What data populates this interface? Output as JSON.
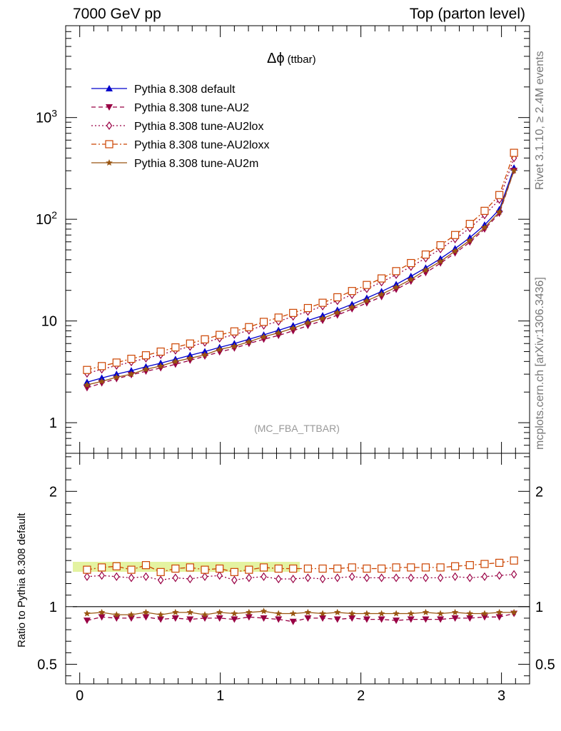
{
  "header": {
    "left": "7000 GeV pp",
    "right": "Top (parton level)"
  },
  "side_labels": {
    "rivet": "Rivet 3.1.10, ≥ 2.4M events",
    "mcplots": "mcplots.cern.ch [arXiv:1306.3436]"
  },
  "chart_data": [
    {
      "type": "scatter",
      "title": "Δϕ",
      "title_suffix": "(ttbar)",
      "annotation": "(MC_FBA_TTBAR)",
      "yscale": "log",
      "ylim": [
        0.5,
        8000
      ],
      "xlim": [
        -0.1,
        3.2
      ],
      "ytick_labels": [
        "1",
        "10",
        "10^2",
        "10^3"
      ],
      "legend_position": "top-left",
      "x": [
        0.052,
        0.157,
        0.262,
        0.367,
        0.471,
        0.576,
        0.681,
        0.785,
        0.89,
        0.995,
        1.1,
        1.204,
        1.309,
        1.414,
        1.518,
        1.623,
        1.728,
        1.833,
        1.937,
        2.042,
        2.147,
        2.251,
        2.356,
        2.461,
        2.566,
        2.67,
        2.775,
        2.88,
        2.985,
        3.089
      ],
      "series": [
        {
          "name": "Pythia 8.308 default",
          "color": "#0000cc",
          "marker": "triangle-up",
          "line": "solid",
          "values": [
            2.5,
            2.75,
            3.0,
            3.25,
            3.55,
            3.85,
            4.2,
            4.6,
            5.0,
            5.5,
            6.0,
            6.6,
            7.3,
            8.1,
            9.0,
            10.1,
            11.3,
            12.8,
            14.6,
            16.8,
            19.5,
            22.9,
            27.5,
            33.3,
            41.0,
            51.5,
            66.0,
            88.0,
            125.0,
            320.0
          ]
        },
        {
          "name": "Pythia 8.308 tune-AU2",
          "color": "#990044",
          "marker": "triangle-down",
          "line": "dashed",
          "values": [
            2.2,
            2.45,
            2.7,
            2.95,
            3.2,
            3.45,
            3.75,
            4.1,
            4.5,
            4.95,
            5.4,
            6.0,
            6.6,
            7.2,
            8.0,
            9.0,
            10.1,
            11.4,
            13.1,
            15.0,
            17.3,
            20.4,
            24.5,
            29.8,
            37.0,
            46.5,
            59.5,
            80.0,
            114.0,
            300.0
          ]
        },
        {
          "name": "Pythia 8.308 tune-AU2lox",
          "color": "#990044",
          "marker": "diamond-open",
          "line": "dotted",
          "values": [
            3.05,
            3.35,
            3.65,
            3.95,
            4.3,
            4.65,
            5.15,
            5.6,
            6.15,
            6.75,
            7.35,
            8.1,
            9.05,
            9.9,
            11.1,
            12.4,
            14.0,
            15.8,
            18.1,
            20.7,
            24.1,
            28.5,
            34.2,
            41.4,
            51.0,
            64.0,
            82.0,
            110.0,
            156.0,
            400.0
          ]
        },
        {
          "name": "Pythia 8.308 tune-AU2loxx",
          "color": "#cc4400",
          "marker": "square-open",
          "line": "dashdot",
          "values": [
            3.3,
            3.6,
            3.9,
            4.25,
            4.6,
            5.0,
            5.5,
            6.0,
            6.6,
            7.3,
            7.9,
            8.7,
            9.8,
            10.8,
            12.0,
            13.4,
            15.1,
            17.1,
            19.7,
            22.6,
            26.2,
            30.9,
            37.1,
            45.0,
            55.5,
            70.0,
            90.0,
            121.0,
            173.0,
            450.0
          ]
        },
        {
          "name": "Pythia 8.308 tune-AU2m",
          "color": "#995511",
          "marker": "star",
          "line": "solid",
          "values": [
            2.35,
            2.55,
            2.8,
            3.0,
            3.35,
            3.6,
            4.0,
            4.3,
            4.65,
            5.25,
            5.65,
            6.25,
            7.0,
            7.65,
            8.5,
            9.6,
            10.6,
            12.1,
            13.7,
            15.8,
            18.3,
            21.5,
            25.6,
            31.7,
            38.5,
            48.7,
            62.0,
            83.0,
            118.0,
            300.0
          ]
        }
      ]
    },
    {
      "type": "scatter",
      "ylabel": "Ratio to Pythia 8.308 default",
      "ylim": [
        0.33,
        2.33
      ],
      "xlim": [
        -0.1,
        3.2
      ],
      "xtick_labels": [
        "0",
        "1",
        "2",
        "3"
      ],
      "ytick_labels": [
        "0.5",
        "1",
        "2"
      ],
      "x": [
        0.052,
        0.157,
        0.262,
        0.367,
        0.471,
        0.576,
        0.681,
        0.785,
        0.89,
        0.995,
        1.1,
        1.204,
        1.309,
        1.414,
        1.518,
        1.623,
        1.728,
        1.833,
        1.937,
        2.042,
        2.147,
        2.251,
        2.356,
        2.461,
        2.566,
        2.67,
        2.775,
        2.88,
        2.985,
        3.089
      ],
      "series": [
        {
          "name": "Pythia 8.308 default",
          "color": "#000000",
          "values": [
            1,
            1,
            1,
            1,
            1,
            1,
            1,
            1,
            1,
            1,
            1,
            1,
            1,
            1,
            1,
            1,
            1,
            1,
            1,
            1,
            1,
            1,
            1,
            1,
            1,
            1,
            1,
            1,
            1,
            1
          ]
        },
        {
          "name": "Pythia 8.308 tune-AU2",
          "color": "#990044",
          "marker": "triangle-down",
          "line": "dashed",
          "values": [
            0.88,
            0.91,
            0.9,
            0.9,
            0.91,
            0.89,
            0.9,
            0.89,
            0.9,
            0.9,
            0.89,
            0.91,
            0.9,
            0.89,
            0.87,
            0.9,
            0.9,
            0.89,
            0.9,
            0.89,
            0.89,
            0.88,
            0.89,
            0.89,
            0.89,
            0.9,
            0.9,
            0.91,
            0.91,
            0.94
          ]
        },
        {
          "name": "Pythia 8.308 tune-AU2lox",
          "color": "#990044",
          "marker": "diamond-open",
          "line": "dotted",
          "values": [
            1.26,
            1.27,
            1.26,
            1.25,
            1.26,
            1.23,
            1.25,
            1.24,
            1.26,
            1.27,
            1.23,
            1.25,
            1.26,
            1.24,
            1.24,
            1.25,
            1.24,
            1.25,
            1.26,
            1.25,
            1.25,
            1.25,
            1.25,
            1.25,
            1.25,
            1.26,
            1.25,
            1.26,
            1.27,
            1.28
          ]
        },
        {
          "name": "Pythia 8.308 tune-AU2loxx",
          "color": "#cc4400",
          "marker": "square-open",
          "line": "dashdot",
          "values": [
            1.32,
            1.34,
            1.35,
            1.32,
            1.36,
            1.3,
            1.33,
            1.34,
            1.32,
            1.33,
            1.3,
            1.32,
            1.34,
            1.33,
            1.33,
            1.33,
            1.33,
            1.33,
            1.34,
            1.33,
            1.33,
            1.34,
            1.34,
            1.34,
            1.34,
            1.35,
            1.36,
            1.37,
            1.38,
            1.4
          ]
        },
        {
          "name": "Pythia 8.308 tune-AU2m",
          "color": "#995511",
          "marker": "star",
          "line": "solid",
          "values": [
            0.94,
            0.95,
            0.93,
            0.93,
            0.95,
            0.93,
            0.95,
            0.95,
            0.93,
            0.95,
            0.94,
            0.95,
            0.96,
            0.94,
            0.94,
            0.95,
            0.94,
            0.95,
            0.94,
            0.94,
            0.94,
            0.94,
            0.94,
            0.95,
            0.94,
            0.95,
            0.94,
            0.94,
            0.95,
            0.95
          ]
        }
      ]
    }
  ]
}
